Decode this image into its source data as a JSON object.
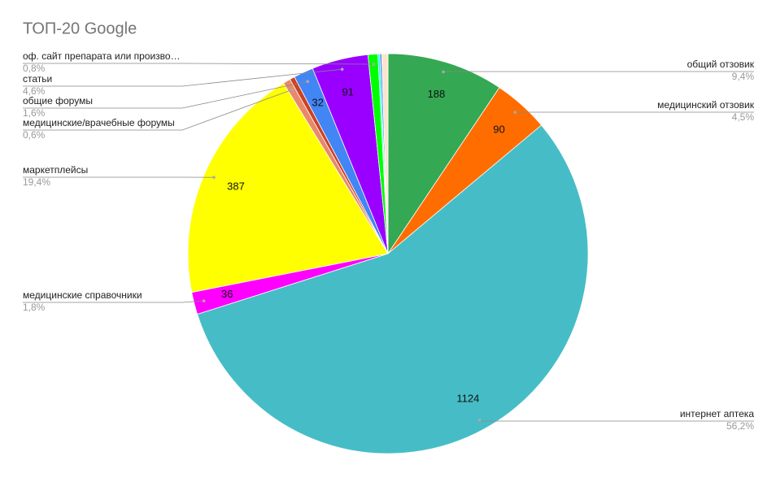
{
  "chart_data": {
    "type": "pie",
    "title": "ТОП-20 Google",
    "categories": [
      "общий отзовик",
      "медицинский отзовик",
      "интернет аптека",
      "медицинские справочники",
      "маркетплейсы",
      "медицинские/врачебные форумы",
      null,
      "общие форумы",
      "статьи",
      "оф. сайт препарата или произво…",
      null,
      null,
      null
    ],
    "values": [
      188,
      90,
      1124,
      36,
      387,
      12,
      8,
      32,
      91,
      16,
      3,
      3,
      10
    ],
    "percent_labels": [
      "9,4%",
      "4,5%",
      "56,2%",
      "1,8%",
      "19,4%",
      "0,6%",
      null,
      "1,6%",
      "4,6%",
      "0,8%",
      null,
      null,
      null
    ],
    "colors": [
      "#34a853",
      "#ff6d01",
      "#46bdc6",
      "#ff00ff",
      "#ffff00",
      "#e8896a",
      "#cc4125",
      "#4285f4",
      "#9900ff",
      "#00ff00",
      "#00ffff",
      "#4a86e8",
      "#fce5cd"
    ]
  }
}
